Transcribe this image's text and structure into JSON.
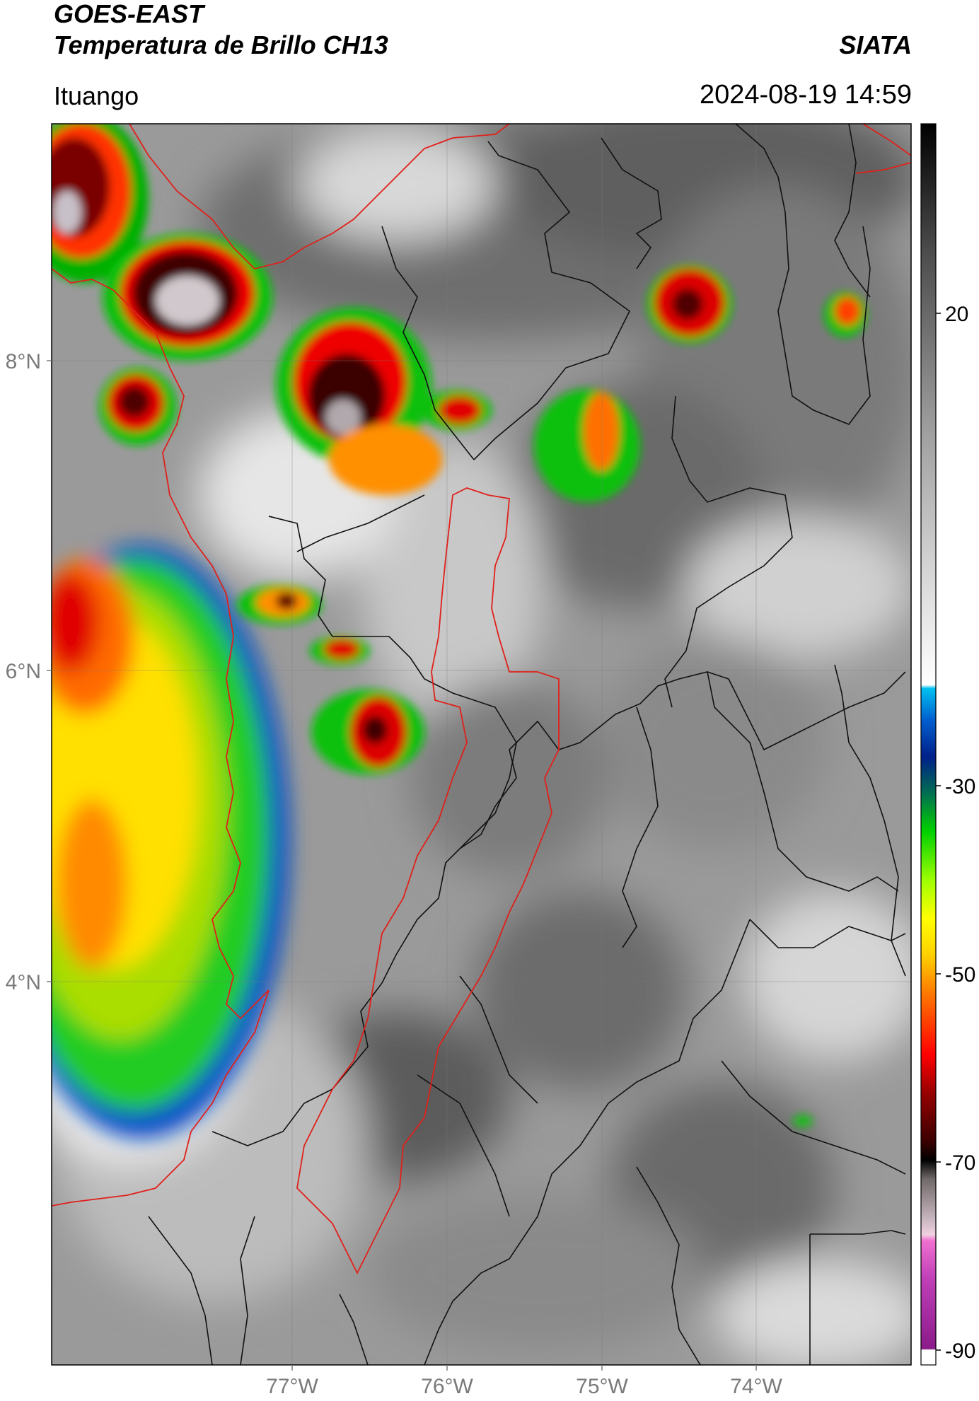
{
  "header": {
    "satellite": "GOES-EAST",
    "product": "Temperatura de Brillo CH13",
    "organization": "SIATA",
    "region": "Ituango",
    "datetime": "2024-08-19 14:59"
  },
  "map": {
    "lat_labels": [
      "8°N",
      "6°N",
      "4°N"
    ],
    "lon_labels": [
      "77°W",
      "76°W",
      "75°W",
      "74°W"
    ],
    "border_colors": {
      "coastline": "#e0201a",
      "departments": "#111111",
      "basin": "#e0201a"
    },
    "gridlines": true
  },
  "colorbar": {
    "ticks": [
      "20",
      "-30",
      "-50",
      "-70",
      "-90"
    ],
    "unit_hidden": true
  }
}
